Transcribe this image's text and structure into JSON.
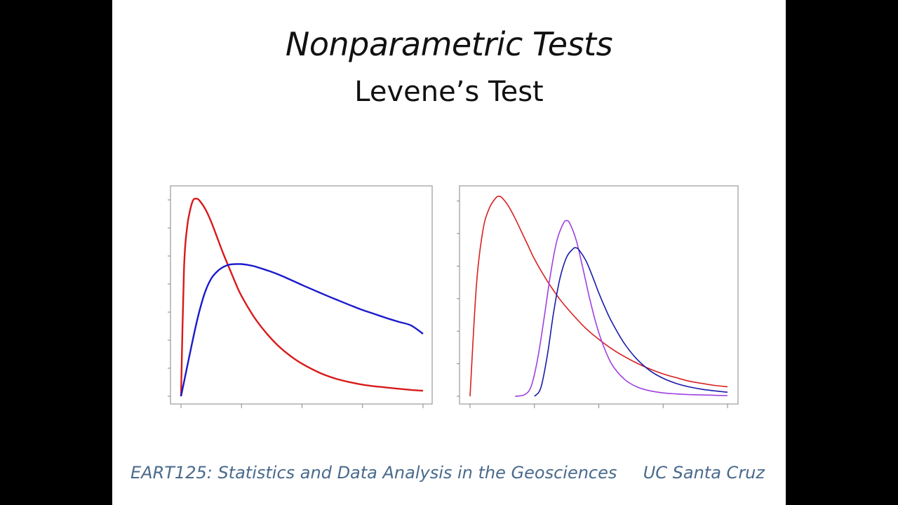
{
  "slide": {
    "title": "Nonparametric Tests",
    "subtitle": "Levene’s Test",
    "footer_left": "EART125: Statistics and Data Analysis in the Geosciences",
    "footer_right": "UC Santa Cruz"
  },
  "chart_data": [
    {
      "type": "line",
      "xlim": [
        0,
        4
      ],
      "ylim": [
        0,
        7
      ],
      "grid": false,
      "series": [
        {
          "color": "#d81a1a",
          "x": [
            0,
            0.05,
            0.1,
            0.15,
            0.2,
            0.25,
            0.3,
            0.4,
            0.5,
            0.6,
            0.7,
            0.8,
            0.9,
            1.0,
            1.2,
            1.4,
            1.6,
            1.8,
            2.0,
            2.3,
            2.6,
            3.0,
            3.4,
            3.8,
            4.0
          ],
          "y": [
            0,
            4.4,
            5.8,
            6.4,
            6.75,
            6.8,
            6.75,
            6.45,
            6.0,
            5.45,
            4.9,
            4.4,
            3.9,
            3.45,
            2.75,
            2.2,
            1.75,
            1.4,
            1.12,
            0.8,
            0.58,
            0.4,
            0.3,
            0.22,
            0.19
          ]
        },
        {
          "color": "#1a1acc",
          "x": [
            0,
            0.1,
            0.2,
            0.3,
            0.4,
            0.5,
            0.6,
            0.7,
            0.8,
            0.9,
            1.0,
            1.1,
            1.2,
            1.4,
            1.6,
            1.8,
            2.0,
            2.2,
            2.4,
            2.6,
            2.8,
            3.0,
            3.2,
            3.4,
            3.6,
            3.8,
            4.0
          ],
          "y": [
            0,
            1.0,
            2.0,
            2.9,
            3.6,
            4.05,
            4.3,
            4.45,
            4.53,
            4.55,
            4.55,
            4.52,
            4.48,
            4.35,
            4.2,
            4.02,
            3.83,
            3.65,
            3.47,
            3.3,
            3.13,
            2.97,
            2.83,
            2.69,
            2.56,
            2.44,
            2.15
          ]
        }
      ]
    },
    {
      "type": "line",
      "xlim": [
        0,
        4
      ],
      "ylim": [
        0,
        6
      ],
      "grid": false,
      "series": [
        {
          "color": "#d82020",
          "x": [
            0,
            0.1,
            0.2,
            0.3,
            0.4,
            0.45,
            0.5,
            0.6,
            0.7,
            0.8,
            0.9,
            1.0,
            1.2,
            1.4,
            1.6,
            1.8,
            2.0,
            2.2,
            2.4,
            2.6,
            2.8,
            3.0,
            3.2,
            3.4,
            3.6,
            3.8,
            4.0
          ],
          "y": [
            0,
            3.3,
            4.9,
            5.55,
            5.85,
            5.9,
            5.85,
            5.6,
            5.25,
            4.85,
            4.45,
            4.05,
            3.4,
            2.85,
            2.4,
            2.0,
            1.68,
            1.4,
            1.17,
            0.97,
            0.8,
            0.66,
            0.55,
            0.45,
            0.38,
            0.32,
            0.28
          ]
        },
        {
          "color": "#a040e0",
          "x": [
            0.7,
            0.85,
            0.95,
            1.05,
            1.15,
            1.25,
            1.35,
            1.45,
            1.5,
            1.55,
            1.65,
            1.75,
            1.85,
            1.95,
            2.05,
            2.2,
            2.4,
            2.6,
            2.8,
            3.0,
            3.2,
            3.4,
            3.6,
            3.8,
            4.0
          ],
          "y": [
            0,
            0.05,
            0.3,
            1.1,
            2.3,
            3.6,
            4.6,
            5.1,
            5.18,
            5.1,
            4.6,
            3.8,
            2.95,
            2.2,
            1.6,
            0.95,
            0.5,
            0.27,
            0.16,
            0.1,
            0.07,
            0.05,
            0.04,
            0.03,
            0.02
          ]
        },
        {
          "color": "#1a1aaa",
          "x": [
            1.0,
            1.1,
            1.2,
            1.3,
            1.4,
            1.5,
            1.6,
            1.65,
            1.7,
            1.8,
            1.9,
            2.0,
            2.1,
            2.2,
            2.4,
            2.6,
            2.8,
            3.0,
            3.2,
            3.4,
            3.6,
            3.8,
            4.0
          ],
          "y": [
            0,
            0.25,
            1.2,
            2.5,
            3.5,
            4.1,
            4.35,
            4.38,
            4.3,
            4.0,
            3.55,
            3.05,
            2.6,
            2.2,
            1.55,
            1.08,
            0.75,
            0.53,
            0.38,
            0.28,
            0.21,
            0.16,
            0.12
          ]
        }
      ]
    }
  ]
}
